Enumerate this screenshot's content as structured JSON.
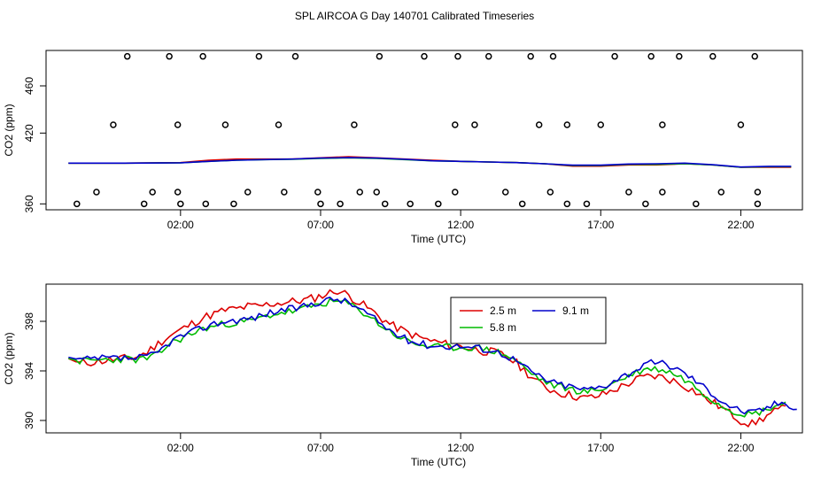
{
  "title": "SPL AIRCOA G  Day 140701  Calibrated Timeseries",
  "chart_data": [
    {
      "type": "scatter",
      "xlabel": "Time (UTC)",
      "ylabel": "CO2 (ppm)",
      "xlim": [
        -2.8,
        24.2
      ],
      "ylim": [
        355,
        490
      ],
      "xticks": [
        2,
        7,
        12,
        17,
        22
      ],
      "xtick_labels": [
        "02:00",
        "07:00",
        "12:00",
        "17:00",
        "22:00"
      ],
      "yticks": [
        360,
        420,
        460
      ],
      "ytick_labels": [
        "360",
        "420",
        "460"
      ],
      "series_lines": [
        {
          "name": "2.5 m",
          "color": "#dd0000",
          "x": [
            -2.0,
            0,
            2,
            3,
            4,
            5,
            6,
            7,
            8,
            9,
            10,
            11,
            12,
            13,
            14,
            15,
            16,
            17,
            18,
            19,
            20,
            21,
            22,
            23,
            23.8
          ],
          "y": [
            394.5,
            394.5,
            395,
            397,
            398,
            398,
            398,
            399,
            400,
            399,
            398,
            397,
            396,
            395.5,
            395,
            394,
            392,
            392,
            393,
            393,
            394,
            393,
            391,
            391,
            391
          ]
        },
        {
          "name": "5.8 m",
          "color": "#00bb00",
          "x": [
            -2.0,
            0,
            2,
            3,
            4,
            5,
            6,
            7,
            8,
            9,
            10,
            11,
            12,
            13,
            14,
            15,
            16,
            17,
            18,
            19,
            20,
            21,
            22,
            23,
            23.8
          ],
          "y": [
            394.5,
            394.5,
            394.8,
            396,
            397,
            397.5,
            397.8,
            398.5,
            399,
            398.5,
            397.5,
            396.5,
            396,
            395.5,
            395,
            394,
            392.5,
            392.5,
            393.5,
            393.5,
            394,
            393,
            391,
            391.5,
            391.5
          ]
        },
        {
          "name": "9.1 m",
          "color": "#0000cc",
          "x": [
            -2.0,
            0,
            2,
            3,
            4,
            5,
            6,
            7,
            8,
            9,
            10,
            11,
            12,
            13,
            14,
            15,
            16,
            17,
            18,
            19,
            20,
            21,
            22,
            23,
            23.8
          ],
          "y": [
            394.5,
            394.5,
            394.8,
            396,
            397,
            397.5,
            398,
            398.8,
            399.2,
            398.8,
            397.8,
            396.5,
            396,
            395.5,
            395,
            394,
            392.8,
            392.8,
            393.8,
            394,
            394.5,
            393.2,
            391.2,
            391.8,
            391.8
          ]
        }
      ],
      "points": {
        "x": [
          -1.7,
          -1.0,
          -0.4,
          0.1,
          0.7,
          1.0,
          1.6,
          1.9,
          1.9,
          2.0,
          2.8,
          2.9,
          3.6,
          3.9,
          4.4,
          4.8,
          5.5,
          5.7,
          6.1,
          6.9,
          7.0,
          7.7,
          8.2,
          8.4,
          9.0,
          9.1,
          9.3,
          10.2,
          10.7,
          11.2,
          11.8,
          11.8,
          11.9,
          12.5,
          13.0,
          13.6,
          14.2,
          14.5,
          14.8,
          15.2,
          15.3,
          15.8,
          15.8,
          16.5,
          17.0,
          17.5,
          18.0,
          18.6,
          18.8,
          19.2,
          19.2,
          19.8,
          20.4,
          21.0,
          21.3,
          22.0,
          22.5,
          22.6,
          22.6
        ],
        "y": [
          360,
          370,
          427,
          485,
          360,
          370,
          485,
          427,
          370,
          360,
          485,
          360,
          427,
          360,
          370,
          485,
          427,
          370,
          485,
          370,
          360,
          360,
          427,
          370,
          370,
          485,
          360,
          360,
          485,
          360,
          427,
          370,
          485,
          427,
          485,
          370,
          360,
          485,
          427,
          370,
          485,
          427,
          360,
          360,
          427,
          485,
          370,
          360,
          485,
          427,
          370,
          485,
          360,
          485,
          370,
          427,
          485,
          370,
          360
        ]
      }
    },
    {
      "type": "line",
      "xlabel": "Time (UTC)",
      "ylabel": "CO2 (ppm)",
      "xlim": [
        -2.8,
        24.2
      ],
      "ylim": [
        389,
        401
      ],
      "xticks": [
        2,
        7,
        12,
        17,
        22
      ],
      "xtick_labels": [
        "02:00",
        "07:00",
        "12:00",
        "17:00",
        "22:00"
      ],
      "yticks": [
        390,
        394,
        398
      ],
      "ytick_labels": [
        "390",
        "394",
        "398"
      ],
      "legend": "top-center",
      "legend_order": [
        "2.5 m",
        "9.1 m",
        "5.8 m"
      ],
      "x": [
        -2,
        -1.6,
        -1.2,
        -0.8,
        -0.4,
        0,
        0.4,
        0.8,
        1.2,
        1.6,
        2,
        2.4,
        2.8,
        3.2,
        3.6,
        4,
        4.4,
        4.8,
        5.2,
        5.6,
        6,
        6.4,
        6.8,
        7.2,
        7.6,
        8,
        8.4,
        8.8,
        9.2,
        9.6,
        10,
        10.4,
        10.8,
        11.2,
        11.6,
        12,
        12.4,
        12.8,
        13.2,
        13.6,
        14,
        14.4,
        14.8,
        15.2,
        15.6,
        16,
        16.4,
        16.8,
        17.2,
        17.6,
        18,
        18.4,
        18.8,
        19.2,
        19.6,
        20,
        20.4,
        20.8,
        21.2,
        21.6,
        22,
        22.4,
        22.8,
        23.2,
        23.6,
        24
      ],
      "series": [
        {
          "name": "2.5 m",
          "color": "#dd0000",
          "values": [
            395,
            394.6,
            394.7,
            394.8,
            394.9,
            395,
            395.1,
            395.5,
            396.2,
            396.8,
            397.3,
            397.8,
            398.3,
            398.6,
            398.9,
            399,
            399.2,
            399.2,
            399.4,
            399.5,
            399.6,
            399.7,
            399.9,
            400.2,
            400.5,
            400.1,
            399.5,
            398.9,
            398.2,
            397.6,
            397.2,
            396.8,
            396.5,
            396.3,
            396.1,
            396,
            395.8,
            395.6,
            395.5,
            395.2,
            394.6,
            393.8,
            393,
            392.5,
            392.2,
            392,
            391.8,
            391.9,
            392.2,
            392.6,
            393,
            393.4,
            393.6,
            393.5,
            393.2,
            392.8,
            392.3,
            391.7,
            391.2,
            390.6,
            390,
            389.7,
            390.2,
            390.7,
            391,
            null
          ],
          "noise_amp": 0.35,
          "noise_seed": 11
        },
        {
          "name": "5.8 m",
          "color": "#00bb00",
          "values": [
            395,
            394.8,
            394.8,
            394.9,
            394.9,
            395,
            394.9,
            395,
            395.3,
            396.2,
            396.6,
            397,
            397.4,
            397.6,
            397.8,
            397.9,
            398,
            398.2,
            398.5,
            398.7,
            398.8,
            399,
            399.3,
            399.5,
            399.6,
            399.4,
            398.9,
            398.3,
            397.6,
            397,
            396.5,
            396.2,
            396,
            395.9,
            395.9,
            395.9,
            395.9,
            395.8,
            395.6,
            395.3,
            394.8,
            394,
            393.4,
            392.9,
            392.7,
            392.5,
            392.3,
            392.4,
            392.7,
            393.2,
            393.6,
            394,
            394.2,
            394.1,
            393.8,
            393.3,
            392.7,
            392,
            391.4,
            390.9,
            390.6,
            390.5,
            390.8,
            391.2,
            391.4,
            null
          ],
          "noise_amp": 0.3,
          "noise_seed": 23
        },
        {
          "name": "9.1 m",
          "color": "#0000cc",
          "values": [
            395.1,
            394.9,
            394.9,
            395,
            395,
            395,
            395,
            395.1,
            395.5,
            396.3,
            396.8,
            397.1,
            397.5,
            397.8,
            398,
            398.1,
            398.2,
            398.4,
            398.7,
            398.9,
            399,
            399.2,
            399.5,
            399.7,
            399.8,
            399.5,
            399,
            398.4,
            397.7,
            397.1,
            396.6,
            396.3,
            396.1,
            396,
            396,
            396,
            395.9,
            395.8,
            395.6,
            395.3,
            394.8,
            394.1,
            393.6,
            393.1,
            392.9,
            392.7,
            392.5,
            392.6,
            392.9,
            393.4,
            393.8,
            394.3,
            394.6,
            394.6,
            394.3,
            393.8,
            393.2,
            392.5,
            391.8,
            391.2,
            390.8,
            390.6,
            390.9,
            391.3,
            391.5,
            390.9
          ],
          "noise_amp": 0.3,
          "noise_seed": 37
        }
      ]
    }
  ]
}
